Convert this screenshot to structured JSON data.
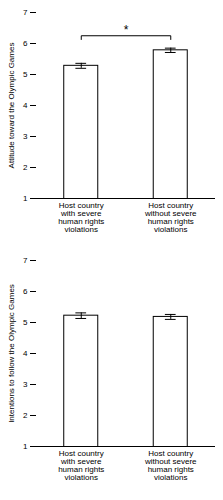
{
  "chart_data": [
    {
      "type": "bar",
      "ylabel": "Attitude toward the Olympic Games",
      "categories": [
        "Host country\nwith severe\nhuman rights\nviolations",
        "Host country\nwithout severe\nhuman rights\nviolations"
      ],
      "values": [
        5.28,
        5.78
      ],
      "errors": [
        0.08,
        0.07
      ],
      "color": "#ffffff",
      "ylim": [
        1,
        7
      ],
      "yticks": [
        1,
        2,
        3,
        4,
        5,
        6,
        7
      ],
      "annotations": [
        {
          "text": "*",
          "y": 6.25
        }
      ]
    },
    {
      "type": "bar",
      "ylabel": "Intentions to follow the Olympic Games",
      "categories": [
        "Host country\nwith severe\nhuman rights\nviolations",
        "Host country\nwithout severe\nhuman rights\nviolations"
      ],
      "values": [
        5.22,
        5.18
      ],
      "errors": [
        0.09,
        0.08
      ],
      "color": "#ffffff",
      "ylim": [
        1,
        7
      ],
      "yticks": [
        1,
        2,
        3,
        4,
        5,
        6,
        7
      ]
    }
  ]
}
